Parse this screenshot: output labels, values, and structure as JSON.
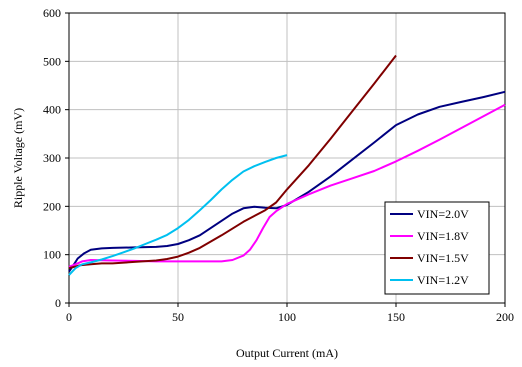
{
  "chart_data": {
    "type": "line",
    "title": "",
    "xlabel": "Output Current (mA)",
    "ylabel": "Ripple Voltage (mV)",
    "xlim": [
      0,
      200
    ],
    "ylim": [
      0,
      600
    ],
    "xticks": [
      0,
      50,
      100,
      150,
      200
    ],
    "yticks": [
      0,
      100,
      200,
      300,
      400,
      500,
      600
    ],
    "grid": true,
    "legend_position": "bottom-right",
    "series": [
      {
        "name": "VIN=2.0V",
        "color": "#000080",
        "points": [
          [
            0,
            65
          ],
          [
            2,
            78
          ],
          [
            4,
            92
          ],
          [
            7,
            103
          ],
          [
            10,
            110
          ],
          [
            15,
            113
          ],
          [
            20,
            114
          ],
          [
            30,
            115
          ],
          [
            40,
            116
          ],
          [
            45,
            118
          ],
          [
            50,
            122
          ],
          [
            55,
            130
          ],
          [
            60,
            140
          ],
          [
            65,
            155
          ],
          [
            70,
            170
          ],
          [
            75,
            185
          ],
          [
            80,
            196
          ],
          [
            85,
            199
          ],
          [
            90,
            197
          ],
          [
            95,
            196
          ],
          [
            100,
            203
          ],
          [
            110,
            230
          ],
          [
            120,
            262
          ],
          [
            130,
            297
          ],
          [
            140,
            332
          ],
          [
            150,
            368
          ],
          [
            160,
            390
          ],
          [
            170,
            406
          ],
          [
            180,
            416
          ],
          [
            190,
            426
          ],
          [
            200,
            437
          ]
        ]
      },
      {
        "name": "VIN=1.8V",
        "color": "#ff00ff",
        "points": [
          [
            0,
            75
          ],
          [
            3,
            80
          ],
          [
            6,
            86
          ],
          [
            10,
            89
          ],
          [
            20,
            88
          ],
          [
            30,
            87
          ],
          [
            40,
            86
          ],
          [
            50,
            86
          ],
          [
            60,
            86
          ],
          [
            70,
            86
          ],
          [
            75,
            89
          ],
          [
            80,
            98
          ],
          [
            83,
            110
          ],
          [
            86,
            130
          ],
          [
            89,
            155
          ],
          [
            92,
            178
          ],
          [
            95,
            190
          ],
          [
            100,
            205
          ],
          [
            110,
            225
          ],
          [
            120,
            243
          ],
          [
            130,
            258
          ],
          [
            140,
            273
          ],
          [
            150,
            293
          ],
          [
            160,
            315
          ],
          [
            170,
            338
          ],
          [
            180,
            362
          ],
          [
            190,
            386
          ],
          [
            200,
            410
          ]
        ]
      },
      {
        "name": "VIN=1.5V",
        "color": "#800000",
        "points": [
          [
            0,
            72
          ],
          [
            5,
            78
          ],
          [
            10,
            80
          ],
          [
            15,
            82
          ],
          [
            20,
            82
          ],
          [
            30,
            85
          ],
          [
            40,
            88
          ],
          [
            45,
            91
          ],
          [
            50,
            96
          ],
          [
            55,
            104
          ],
          [
            60,
            114
          ],
          [
            70,
            140
          ],
          [
            80,
            168
          ],
          [
            90,
            192
          ],
          [
            95,
            208
          ],
          [
            100,
            235
          ],
          [
            110,
            285
          ],
          [
            120,
            340
          ],
          [
            130,
            397
          ],
          [
            140,
            454
          ],
          [
            150,
            512
          ]
        ]
      },
      {
        "name": "VIN=1.2V",
        "color": "#00c0f0",
        "points": [
          [
            0,
            58
          ],
          [
            3,
            72
          ],
          [
            6,
            80
          ],
          [
            10,
            84
          ],
          [
            15,
            90
          ],
          [
            20,
            97
          ],
          [
            25,
            105
          ],
          [
            30,
            113
          ],
          [
            35,
            122
          ],
          [
            40,
            131
          ],
          [
            45,
            141
          ],
          [
            50,
            155
          ],
          [
            55,
            172
          ],
          [
            60,
            192
          ],
          [
            65,
            213
          ],
          [
            70,
            235
          ],
          [
            75,
            255
          ],
          [
            80,
            272
          ],
          [
            85,
            283
          ],
          [
            90,
            292
          ],
          [
            95,
            300
          ],
          [
            100,
            306
          ]
        ]
      }
    ]
  }
}
